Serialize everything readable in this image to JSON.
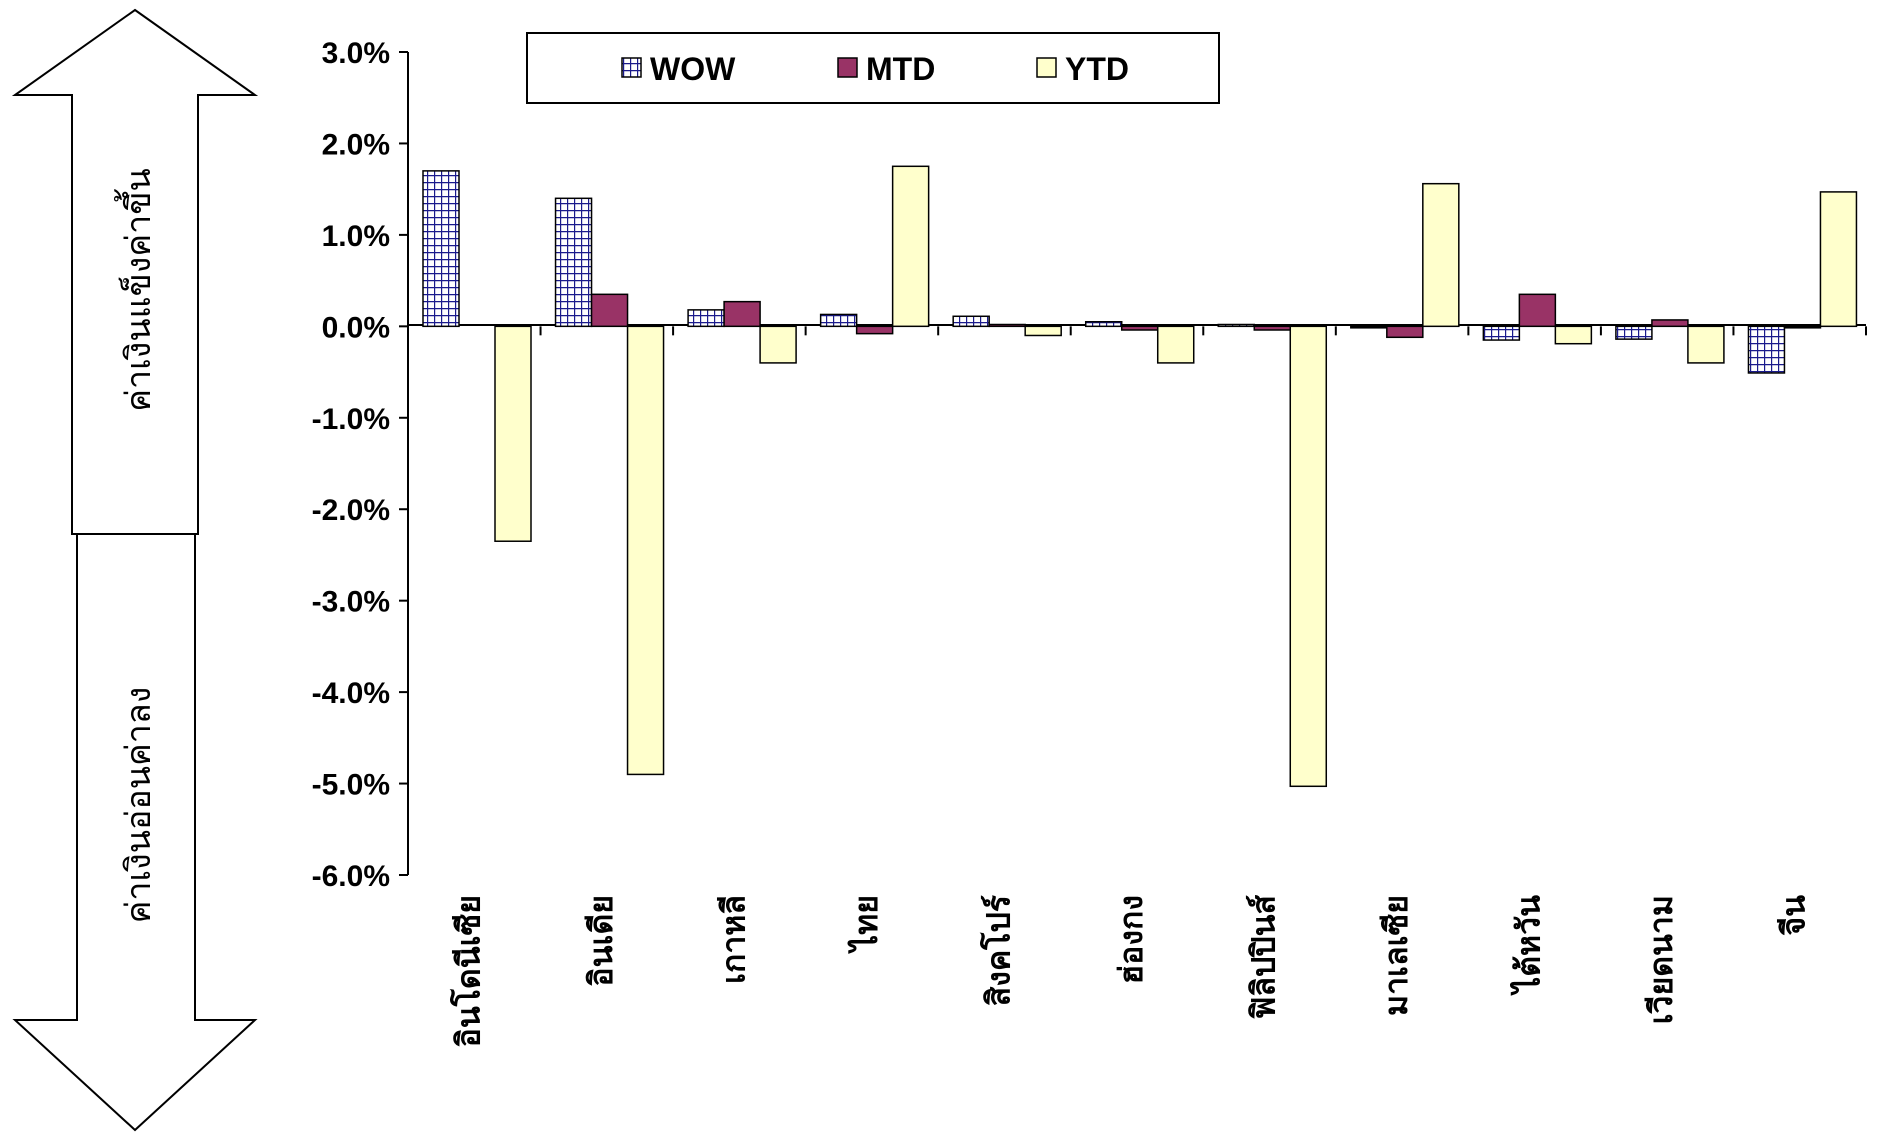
{
  "chart_data": {
    "type": "bar",
    "categories": [
      "อินโดนีเซีย",
      "อินเดีย",
      "เกาหลี",
      "ไทย",
      "สิงคโปร์",
      "ฮ่องกง",
      "ฟิลิปปินส์",
      "มาเลเซีย",
      "ไต้หวัน",
      "เวียดนาม",
      "จีน"
    ],
    "series": [
      {
        "name": "WOW",
        "values": [
          1.7,
          1.4,
          0.18,
          0.13,
          0.11,
          0.05,
          0.02,
          -0.01,
          -0.15,
          -0.14,
          -0.51
        ],
        "color": "#FFFFFF",
        "pattern": "grid-blue"
      },
      {
        "name": "MTD",
        "values": [
          0.0,
          0.35,
          0.27,
          -0.08,
          0.02,
          -0.04,
          -0.04,
          -0.12,
          0.35,
          0.07,
          -0.01
        ],
        "color": "#993366"
      },
      {
        "name": "YTD",
        "values": [
          -2.35,
          -4.9,
          -0.4,
          1.75,
          -0.1,
          -0.4,
          -5.03,
          1.56,
          -0.19,
          -0.4,
          1.47
        ],
        "color": "#FFFFCC"
      }
    ],
    "ylim": [
      -6.0,
      3.0
    ],
    "yticks": [
      "3.0%",
      "2.0%",
      "1.0%",
      "0.0%",
      "-1.0%",
      "-2.0%",
      "-3.0%",
      "-4.0%",
      "-5.0%",
      "-6.0%"
    ],
    "grid": false,
    "legend_position": "top"
  },
  "side_labels": {
    "up": "ค่าเงินแข็งค่าขึ้น",
    "down": "ค่าเงินอ่อนค่าลง"
  }
}
